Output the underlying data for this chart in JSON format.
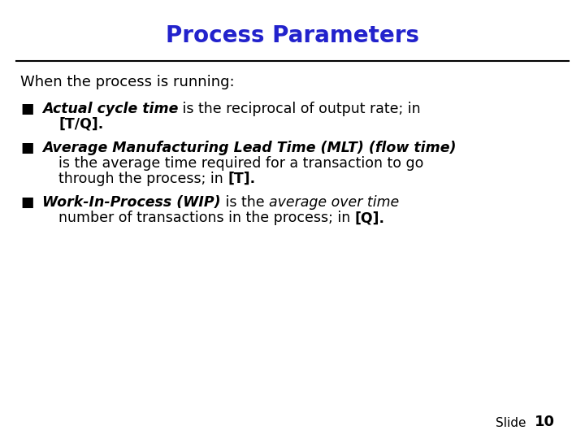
{
  "title": "Process Parameters",
  "title_color": "#2222CC",
  "title_fontsize": 20,
  "title_fontweight": "bold",
  "bg_color": "#FFFFFF",
  "line_color": "#000000",
  "body_color": "#000000",
  "intro_text": "When the process is running:",
  "intro_fontsize": 13,
  "slide_label": "Slide",
  "slide_number": "10",
  "slide_label_fontsize": 11,
  "font_size": 12.5
}
